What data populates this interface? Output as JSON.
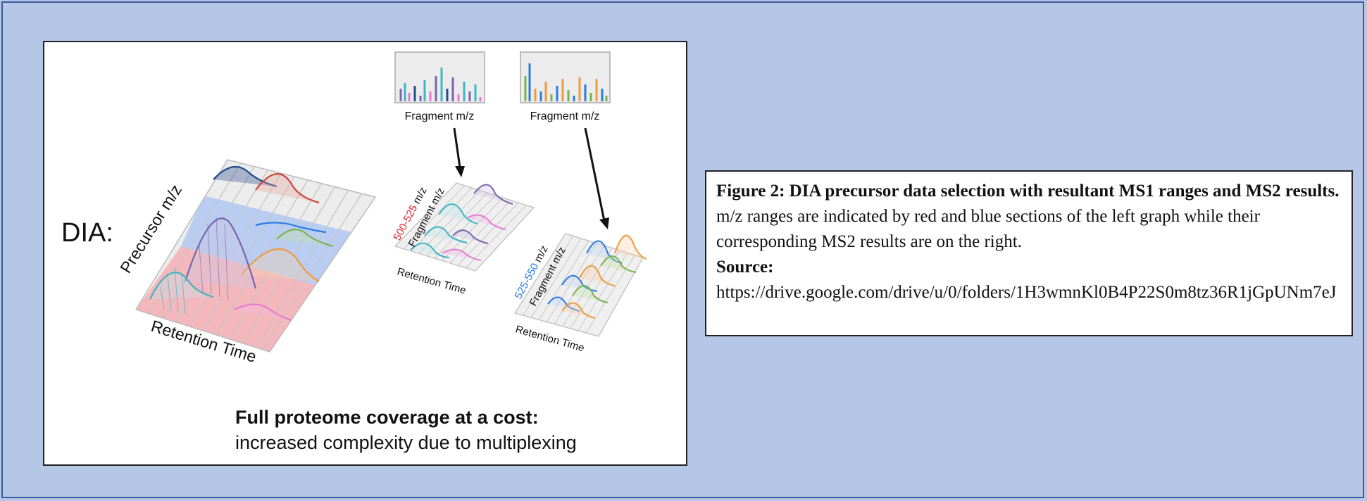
{
  "figure": {
    "dia_label": "DIA:",
    "axis_precursor": "Precursor m/z",
    "axis_retention_main": "Retention Time",
    "spectrum_left_label": "Fragment m/z",
    "spectrum_right_label": "Fragment m/z",
    "small_left_range": "500-525",
    "small_left_unit": " m/z",
    "small_left_axis": "Fragment m/z",
    "small_left_retention": "Retention Time",
    "small_right_range": "525-550",
    "small_right_unit": " m/z",
    "small_right_axis": "Fragment m/z",
    "small_right_retention": "Retention Time",
    "bottom_bold": "Full proteome coverage at a cost:",
    "bottom_normal": "increased complexity due to multiplexing",
    "colors": {
      "red_range": "#e8202a",
      "blue_range": "#2a7be4",
      "pink_band": "#f4b8bc",
      "blue_band": "#b9cdf2"
    }
  },
  "caption": {
    "title_bold": "Figure 2: DIA precursor data selection with resultant MS1 ranges and MS2 results.",
    "body": " m/z ranges are indicated by red and blue sections of the left graph while their corresponding MS2 results are on the right.",
    "source_label": "Source:",
    "source_url": "https://drive.google.com/drive/u/0/folders/1H3wmnKl0B4P22S0m8tz36R1jGpUNm7eJ"
  }
}
